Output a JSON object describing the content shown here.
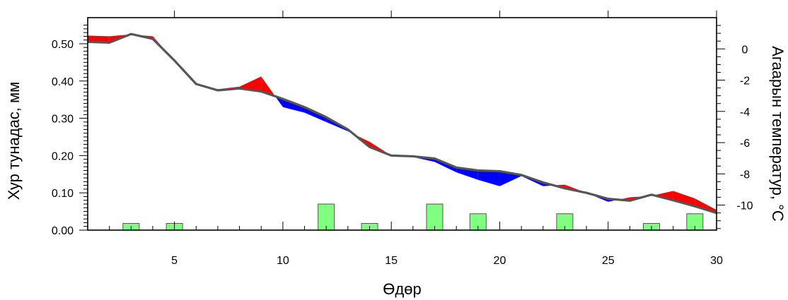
{
  "chart_data": {
    "type": "line",
    "title": "",
    "xlabel": "Өдөр",
    "ylabel_left": "Хур тунадас, мм",
    "ylabel_right": "Агаарын температур, °С",
    "xlim": [
      1,
      30
    ],
    "ylim_left": [
      0,
      0.57
    ],
    "ylim_right": [
      -11.6,
      2.0
    ],
    "x_ticks": [
      5,
      10,
      15,
      20,
      25,
      30
    ],
    "y_left_ticks": [
      "0.00",
      "0.10",
      "0.20",
      "0.30",
      "0.40",
      "0.50"
    ],
    "y_right_ticks": [
      "0",
      "-2",
      "-4",
      "-6",
      "-8",
      "-10"
    ],
    "colors": {
      "above": "#ff0000",
      "below": "#0000ff",
      "line": "#555555",
      "bars": "#80ff80",
      "bar_edge": "#555555"
    },
    "series": [
      {
        "type": "bar",
        "axis": "left",
        "x": [
          3,
          5,
          12,
          14,
          17,
          19,
          23,
          27,
          29
        ],
        "values": [
          0.018,
          0.018,
          0.07,
          0.018,
          0.07,
          0.044,
          0.044,
          0.018,
          0.044
        ]
      },
      {
        "type": "line",
        "axis": "left",
        "x": [
          1,
          2,
          3,
          4,
          5,
          6,
          7,
          8,
          9,
          10,
          11,
          12,
          13,
          14,
          15,
          16,
          17,
          18,
          19,
          20,
          21,
          22,
          23,
          24,
          25,
          26,
          27,
          28,
          29,
          30
        ],
        "values": [
          0.505,
          0.503,
          0.526,
          0.513,
          0.455,
          0.392,
          0.375,
          0.38,
          0.372,
          0.352,
          0.33,
          0.303,
          0.27,
          0.223,
          0.2,
          0.198,
          0.192,
          0.168,
          0.16,
          0.158,
          0.148,
          0.128,
          0.112,
          0.1,
          0.084,
          0.079,
          0.095,
          0.08,
          0.064,
          0.046
        ]
      },
      {
        "type": "line",
        "axis": "left",
        "x": [
          1,
          2,
          3,
          4,
          5,
          6,
          7,
          8,
          9,
          10,
          11,
          12,
          13,
          14,
          15,
          16,
          17,
          18,
          19,
          20,
          21,
          22,
          23,
          24,
          25,
          26,
          27,
          28,
          29,
          30
        ],
        "values": [
          0.522,
          0.52,
          0.525,
          0.52,
          0.455,
          0.392,
          0.378,
          0.385,
          0.412,
          0.33,
          0.315,
          0.29,
          0.265,
          0.237,
          0.2,
          0.196,
          0.183,
          0.155,
          0.135,
          0.118,
          0.145,
          0.118,
          0.122,
          0.1,
          0.076,
          0.088,
          0.092,
          0.105,
          0.085,
          0.054
        ]
      }
    ]
  }
}
